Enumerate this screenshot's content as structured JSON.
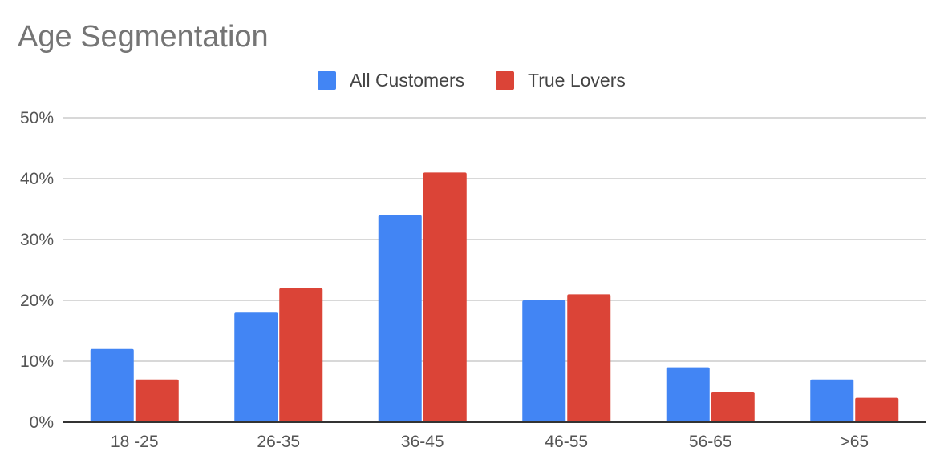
{
  "chart_data": {
    "type": "bar",
    "title": "Age Segmentation",
    "categories": [
      "18 -25",
      "26-35",
      "36-45",
      "46-55",
      "56-65",
      ">65"
    ],
    "series": [
      {
        "name": "All Customers",
        "color": "#4285f4",
        "values": [
          12,
          18,
          34,
          20,
          9,
          7
        ]
      },
      {
        "name": "True Lovers",
        "color": "#db4437",
        "values": [
          7,
          22,
          41,
          21,
          5,
          4
        ]
      }
    ],
    "ylim": [
      0,
      50
    ],
    "yticks": [
      0,
      10,
      20,
      30,
      40,
      50
    ],
    "ytick_labels": [
      "0%",
      "10%",
      "20%",
      "30%",
      "40%",
      "50%"
    ],
    "grid": true,
    "legend_position": "top-center"
  }
}
